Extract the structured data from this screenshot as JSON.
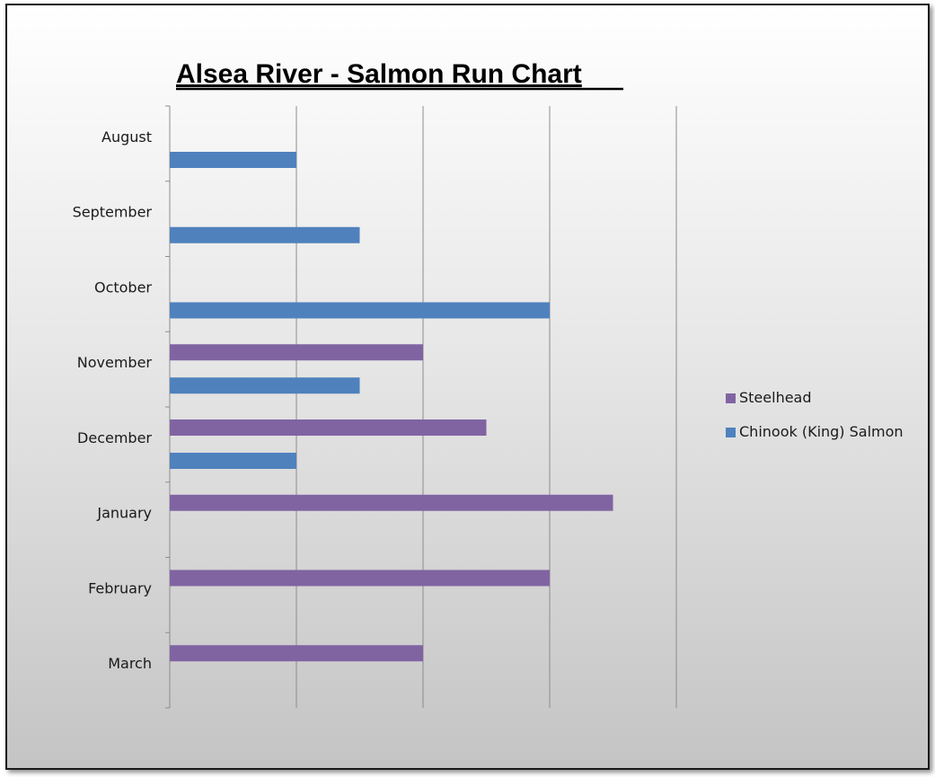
{
  "chart_data": {
    "type": "bar",
    "orientation": "horizontal",
    "title": "Alsea River  -  Salmon Run Chart",
    "categories": [
      "August",
      "September",
      "October",
      "November",
      "December",
      "January",
      "February",
      "March"
    ],
    "series": [
      {
        "name": "Steelhead",
        "color": "#8064a2",
        "values": [
          0,
          0,
          0,
          2,
          2.5,
          3.5,
          3,
          2
        ]
      },
      {
        "name": "Chinook (King) Salmon",
        "color": "#4f81bd",
        "values": [
          1,
          1.5,
          3,
          1.5,
          1,
          0,
          0,
          0
        ]
      }
    ],
    "xlim": [
      0,
      4
    ],
    "gridlines": true,
    "x_tick_labels_shown": false,
    "legend_position": "right"
  }
}
